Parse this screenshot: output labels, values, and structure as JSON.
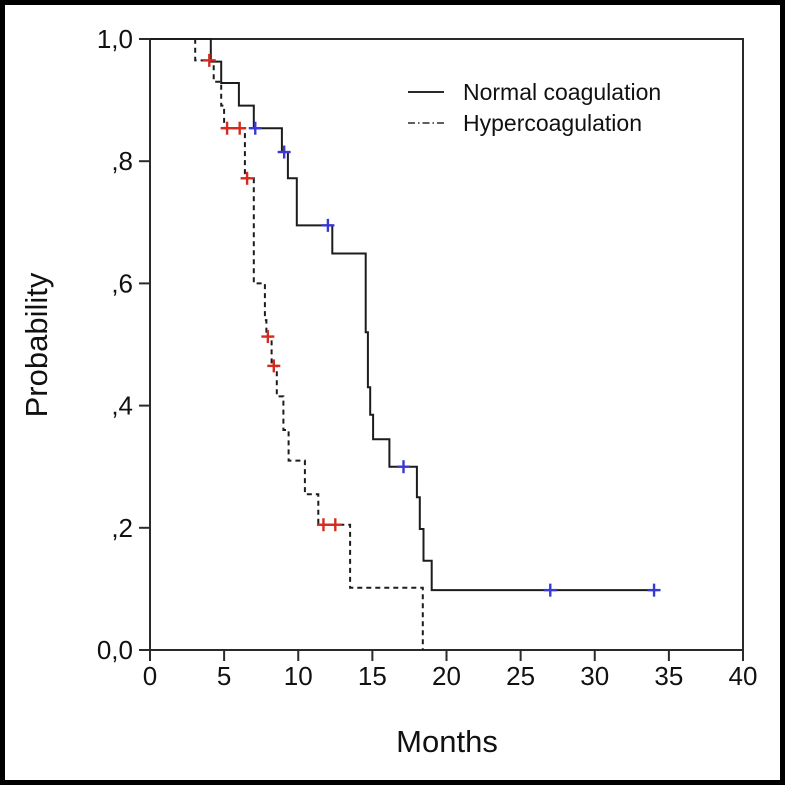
{
  "figure": {
    "background": "#ffffff",
    "border_color": "#000000",
    "curve_color": "#1c1c1c",
    "normal_censor_color": "#3939d2",
    "hyper_censor_color": "#d42b21"
  },
  "chart_data": {
    "type": "line",
    "subtype": "kaplan-meier-step-survival",
    "title": "",
    "xlabel": "Months",
    "ylabel": "Probability",
    "xlim": [
      0,
      40
    ],
    "ylim": [
      0.0,
      1.0
    ],
    "grid": false,
    "legend_position": "top-right-inside",
    "x_ticks": {
      "values": [
        0,
        5,
        10,
        15,
        20,
        25,
        30,
        35,
        40
      ],
      "labels": [
        "0",
        "5",
        "10",
        "15",
        "20",
        "25",
        "30",
        "35",
        "40"
      ]
    },
    "y_ticks": {
      "values": [
        0.0,
        0.2,
        0.4,
        0.6,
        0.8,
        1.0
      ],
      "labels": [
        "0,0",
        ",2",
        ",4",
        ",6",
        ",8",
        "1,0"
      ]
    },
    "series": [
      {
        "name": "Normal coagulation",
        "line_style": "solid",
        "color": "#1c1c1c",
        "censor_color": "#3939d2",
        "start": [
          0,
          1.0
        ],
        "steps": [
          [
            4.1,
            0.963
          ],
          [
            4.8,
            0.928
          ],
          [
            6.0,
            0.891
          ],
          [
            7.0,
            0.854
          ],
          [
            8.9,
            0.815
          ],
          [
            9.3,
            0.772
          ],
          [
            9.9,
            0.695
          ],
          [
            12.3,
            0.649
          ],
          [
            14.55,
            0.52
          ],
          [
            14.7,
            0.43
          ],
          [
            14.85,
            0.385
          ],
          [
            15.05,
            0.345
          ],
          [
            16.15,
            0.3
          ],
          [
            18.0,
            0.25
          ],
          [
            18.2,
            0.198
          ],
          [
            18.45,
            0.146
          ],
          [
            19.0,
            0.098
          ]
        ],
        "end_x": 34.2,
        "censors": [
          [
            7.1,
            0.854
          ],
          [
            9.05,
            0.815
          ],
          [
            12.0,
            0.695
          ],
          [
            17.1,
            0.3
          ],
          [
            27.0,
            0.098
          ],
          [
            34.0,
            0.098
          ]
        ]
      },
      {
        "name": "Hypercoagulation",
        "line_style": "dashed",
        "color": "#1c1c1c",
        "censor_color": "#d42b21",
        "start": [
          0,
          1.0
        ],
        "steps": [
          [
            3.05,
            0.965
          ],
          [
            4.3,
            0.93
          ],
          [
            4.8,
            0.891
          ],
          [
            5.0,
            0.854
          ],
          [
            6.4,
            0.772
          ],
          [
            7.0,
            0.6
          ],
          [
            7.75,
            0.54
          ],
          [
            7.85,
            0.513
          ],
          [
            8.2,
            0.465
          ],
          [
            8.55,
            0.415
          ],
          [
            9.0,
            0.36
          ],
          [
            9.35,
            0.31
          ],
          [
            10.45,
            0.255
          ],
          [
            11.35,
            0.205
          ],
          [
            13.5,
            0.102
          ],
          [
            18.4,
            0.0
          ]
        ],
        "end_x": 18.4,
        "censors": [
          [
            4.0,
            0.965
          ],
          [
            5.2,
            0.854
          ],
          [
            6.05,
            0.854
          ],
          [
            6.55,
            0.772
          ],
          [
            7.95,
            0.513
          ],
          [
            8.35,
            0.465
          ],
          [
            11.7,
            0.205
          ],
          [
            12.5,
            0.205
          ]
        ]
      }
    ]
  }
}
